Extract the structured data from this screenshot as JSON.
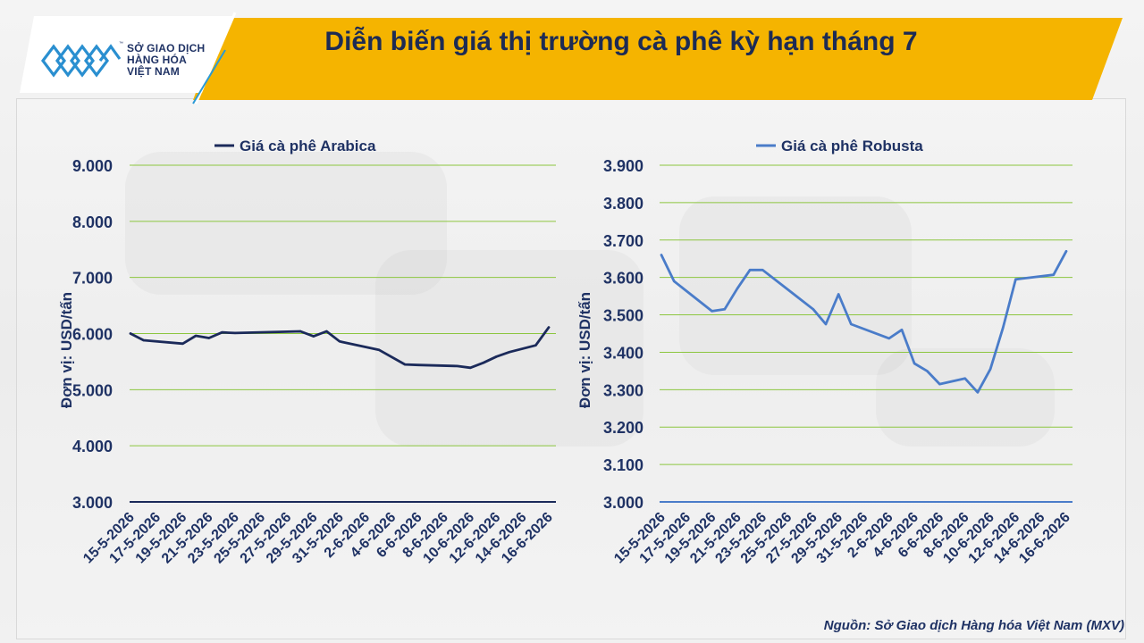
{
  "header": {
    "title": "Diễn biến giá thị trường cà phê kỳ hạn tháng 7",
    "logo_lines": [
      "SỞ GIAO DỊCH",
      "HÀNG HÓA",
      "VIỆT NAM"
    ],
    "logo_tm": "™",
    "banner_color": "#f5b400"
  },
  "footer": {
    "source": "Nguồn: Sở Giao dịch Hàng hóa Việt Nam (MXV)"
  },
  "chart_data": [
    {
      "type": "line",
      "legend": "Giá cà phê Arabica",
      "ylabel": "Đơn vị: USD/tấn",
      "color": "#1b2a5a",
      "ylim": [
        3000,
        9000
      ],
      "yticks": [
        "3.000",
        "4.000",
        "5.000",
        "6.000",
        "7.000",
        "8.000",
        "9.000"
      ],
      "ytick_values": [
        3000,
        4000,
        5000,
        6000,
        7000,
        8000,
        9000
      ],
      "xticks": [
        "15-5-2026",
        "17-5-2026",
        "19-5-2026",
        "21-5-2026",
        "23-5-2026",
        "25-5-2026",
        "27-5-2026",
        "29-5-2026",
        "31-5-2026",
        "2-6-2026",
        "4-6-2026",
        "6-6-2026",
        "8-6-2026",
        "10-6-2026",
        "12-6-2026",
        "14-6-2026",
        "16-6-2026"
      ],
      "x": [
        "15-5-2026",
        "16-5-2026",
        "19-5-2026",
        "20-5-2026",
        "21-5-2026",
        "22-5-2026",
        "23-5-2026",
        "28-5-2026",
        "29-5-2026",
        "30-5-2026",
        "31-5-2026",
        "3-6-2026",
        "5-6-2026",
        "6-6-2026",
        "9-6-2026",
        "10-6-2026",
        "11-6-2026",
        "12-6-2026",
        "13-6-2026",
        "15-6-2026",
        "16-6-2026"
      ],
      "values": [
        6000,
        5880,
        5820,
        5960,
        5920,
        6020,
        6010,
        6040,
        5950,
        6040,
        5860,
        5710,
        5450,
        5440,
        5420,
        5390,
        5480,
        5590,
        5670,
        5790,
        6110
      ],
      "grid": true
    },
    {
      "type": "line",
      "legend": "Giá cà phê Robusta",
      "ylabel": "Đơn vị: USD/tấn",
      "color": "#4a7cc9",
      "ylim": [
        3000,
        3900
      ],
      "yticks": [
        "3.000",
        "3.100",
        "3.200",
        "3.300",
        "3.400",
        "3.500",
        "3.600",
        "3.700",
        "3.800",
        "3.900"
      ],
      "ytick_values": [
        3000,
        3100,
        3200,
        3300,
        3400,
        3500,
        3600,
        3700,
        3800,
        3900
      ],
      "xticks": [
        "15-5-2026",
        "17-5-2026",
        "19-5-2026",
        "21-5-2026",
        "23-5-2026",
        "25-5-2026",
        "27-5-2026",
        "29-5-2026",
        "31-5-2026",
        "2-6-2026",
        "4-6-2026",
        "6-6-2026",
        "8-6-2026",
        "10-6-2026",
        "12-6-2026",
        "14-6-2026",
        "16-6-2026"
      ],
      "x": [
        "15-5-2026",
        "16-5-2026",
        "19-5-2026",
        "20-5-2026",
        "21-5-2026",
        "22-5-2026",
        "23-5-2026",
        "27-5-2026",
        "28-5-2026",
        "29-5-2026",
        "30-5-2026",
        "2-6-2026",
        "3-6-2026",
        "4-6-2026",
        "5-6-2026",
        "6-6-2026",
        "8-6-2026",
        "9-6-2026",
        "10-6-2026",
        "11-6-2026",
        "12-6-2026",
        "15-6-2026",
        "16-6-2026"
      ],
      "values": [
        3660,
        3590,
        3510,
        3515,
        3570,
        3620,
        3620,
        3515,
        3475,
        3555,
        3475,
        3437,
        3460,
        3370,
        3350,
        3315,
        3330,
        3293,
        3355,
        3465,
        3595,
        3607,
        3670
      ],
      "grid": true
    }
  ]
}
